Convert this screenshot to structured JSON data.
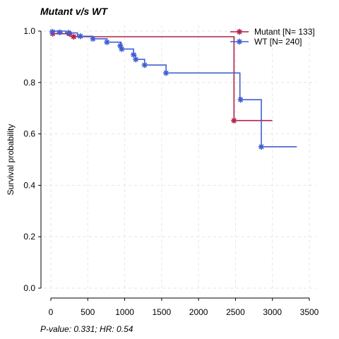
{
  "chart_data": {
    "type": "line",
    "title": "Mutant v/s WT",
    "xlabel": "",
    "ylabel": "Survival probability",
    "xlim": [
      0,
      3500
    ],
    "ylim": [
      0,
      1
    ],
    "x_ticks": [
      0,
      500,
      1000,
      1500,
      2000,
      2500,
      3000,
      3500
    ],
    "y_ticks": [
      0.0,
      0.2,
      0.4,
      0.6,
      0.8,
      1.0
    ],
    "x_tick_labels": [
      "0",
      "500",
      "1000",
      "1500",
      "2000",
      "2500",
      "3000",
      "3500"
    ],
    "y_tick_labels": [
      "0.0",
      "0.2",
      "0.4",
      "0.6",
      "0.8",
      "1.0"
    ],
    "grid": true,
    "legend_position": "top-right",
    "footnote": "P-value: 0.331; HR: 0.54",
    "series": [
      {
        "name": "Mutant [N= 133]",
        "color": "#b2204a",
        "steps": [
          [
            0,
            1.0
          ],
          [
            25,
            0.99
          ],
          [
            270,
            0.978
          ],
          [
            2480,
            0.652
          ],
          [
            3000,
            0.652
          ]
        ],
        "censors": [
          [
            25,
            0.99
          ],
          [
            250,
            0.99
          ],
          [
            310,
            0.978
          ],
          [
            2480,
            0.652
          ]
        ]
      },
      {
        "name": "WT [N= 240]",
        "color": "#3f5fd0",
        "steps": [
          [
            0,
            1.0
          ],
          [
            200,
            0.993
          ],
          [
            360,
            0.98
          ],
          [
            560,
            0.97
          ],
          [
            760,
            0.957
          ],
          [
            950,
            0.93
          ],
          [
            1120,
            0.908
          ],
          [
            1150,
            0.89
          ],
          [
            1270,
            0.868
          ],
          [
            1560,
            0.837
          ],
          [
            2560,
            0.733
          ],
          [
            2850,
            0.55
          ],
          [
            3330,
            0.55
          ]
        ],
        "censors": [
          [
            20,
            0.997
          ],
          [
            120,
            0.995
          ],
          [
            240,
            0.993
          ],
          [
            400,
            0.98
          ],
          [
            570,
            0.97
          ],
          [
            760,
            0.957
          ],
          [
            940,
            0.943
          ],
          [
            960,
            0.93
          ],
          [
            1120,
            0.908
          ],
          [
            1150,
            0.89
          ],
          [
            1270,
            0.868
          ],
          [
            1560,
            0.837
          ],
          [
            2570,
            0.733
          ],
          [
            2850,
            0.55
          ]
        ]
      }
    ]
  }
}
